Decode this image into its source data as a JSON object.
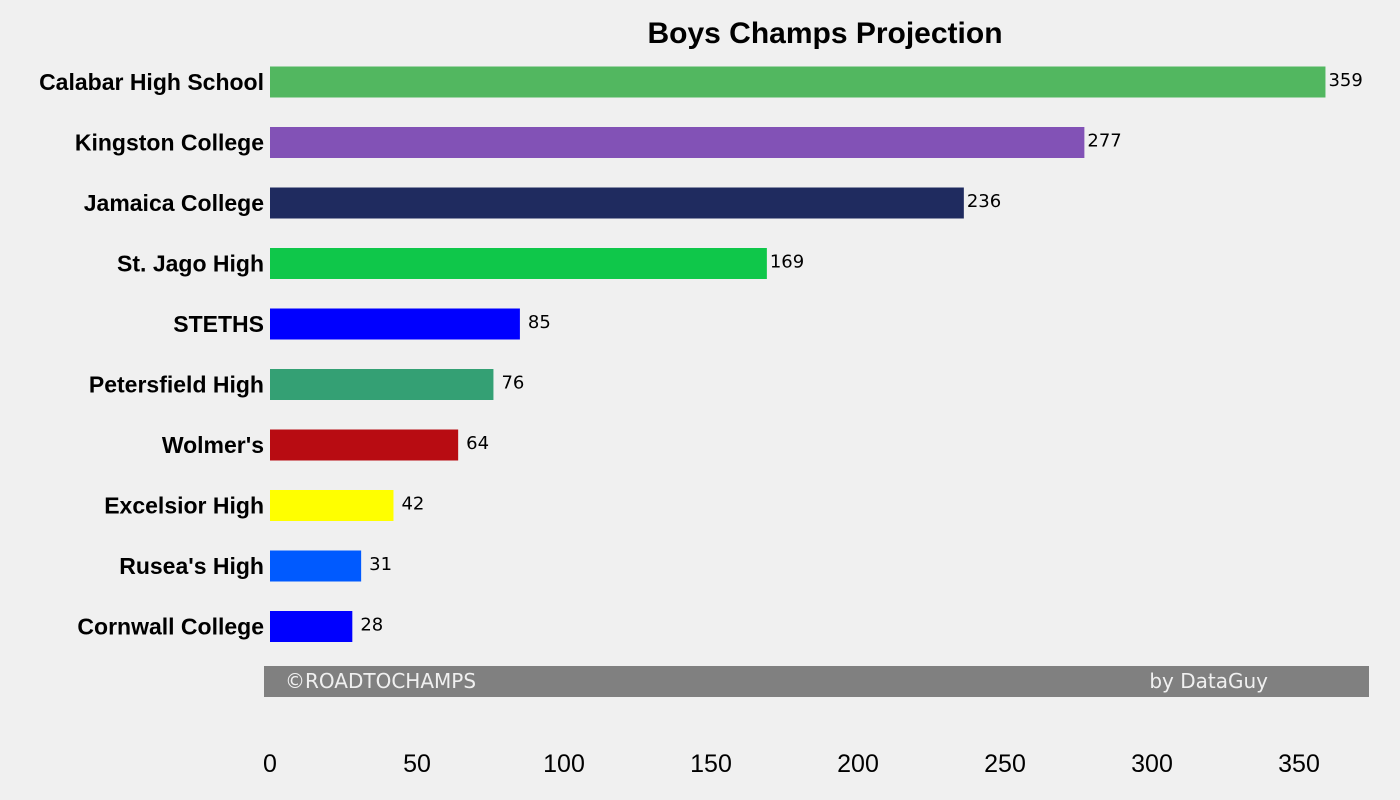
{
  "chart_data": {
    "type": "bar",
    "orientation": "horizontal",
    "title": "Boys Champs Projection",
    "xlabel": "",
    "ylabel": "",
    "xlim": [
      0,
      375
    ],
    "xticks": [
      0,
      50,
      100,
      150,
      200,
      250,
      300,
      350
    ],
    "grid": false,
    "categories": [
      "Calabar High School",
      "Kingston College",
      "Jamaica College",
      "St. Jago High",
      "STETHS",
      "Petersfield High",
      "Wolmer's",
      "Excelsior High",
      "Rusea's High",
      "Cornwall College"
    ],
    "values": [
      359,
      277,
      236,
      169,
      85,
      76,
      64,
      42,
      31,
      28
    ],
    "colors": [
      "#52b760",
      "#8252b6",
      "#1f2b5f",
      "#0fc74a",
      "#0000ff",
      "#34a074",
      "#b80c12",
      "#ffff00",
      "#005aff",
      "#0000ff"
    ]
  },
  "footer": {
    "left_text": "©ROADTOCHAMPS",
    "right_text": "by DataGuy",
    "background": "#808080"
  }
}
